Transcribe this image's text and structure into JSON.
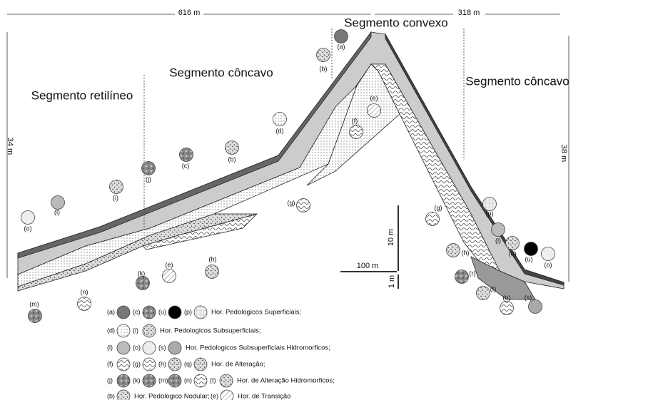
{
  "header": {
    "left_length": "616 m",
    "right_length": "318 m"
  },
  "segments": {
    "convex": "Segmento convexo",
    "concave_left": "Segmento côncavo",
    "straight": "Segmento retilíneo",
    "concave_right": "Segmento côncavo"
  },
  "scale": {
    "left_height": "34 m",
    "right_height": "38 m",
    "vertical": "10 m",
    "horizontal": "100 m",
    "small": "1 m"
  },
  "markers": [
    "(a)",
    "(b)",
    "(e)",
    "(f)",
    "(d)",
    "(b)",
    "(c)",
    "(j)",
    "(i)",
    "(l)",
    "(o)",
    "(g)",
    "(g)",
    "(h)",
    "(e)",
    "(k)",
    "(n)",
    "(m)",
    "(p)",
    "(l)",
    "(q)",
    "(u)",
    "(o)",
    "(h)",
    "(r)",
    "(t)",
    "(n)",
    "(s)"
  ],
  "legend": [
    {
      "items": [
        "(a)",
        "(c)",
        "(u)",
        "(p)"
      ],
      "description": "Hor. Pedologicos Superficiais;"
    },
    {
      "items": [
        "(d)",
        "(i)"
      ],
      "description": "Hor. Pedologicos Subsuperficiais;"
    },
    {
      "items": [
        "(l)",
        "(o)",
        "(s)"
      ],
      "description": "Hor. Pedologicos Subsuperficiais Hidromorficos;"
    },
    {
      "items": [
        "(f)",
        "(g)",
        "(h)",
        "(q)"
      ],
      "description": "Hor. de Alteração;"
    },
    {
      "items": [
        "(j)",
        "(k)",
        "(m)",
        "(n)",
        "(t)"
      ],
      "description": "Hor. de Alteração Hidromorficos;"
    },
    {
      "items": [
        "(b)"
      ],
      "description": "Hor. Pedologico Nodular;"
    },
    {
      "items": [
        "(e)"
      ],
      "description": "Hor. de Transição"
    }
  ]
}
